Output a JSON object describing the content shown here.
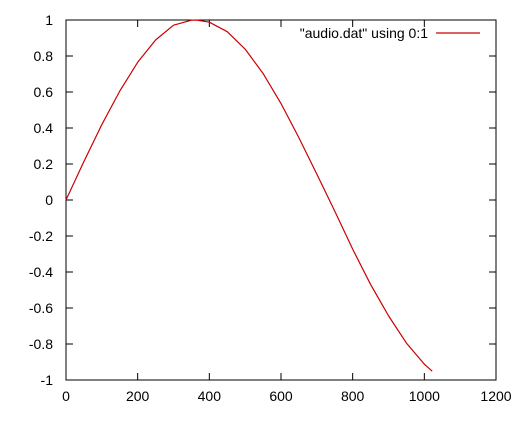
{
  "chart_data": {
    "type": "line",
    "title": "",
    "xlabel": "",
    "ylabel": "",
    "xlim": [
      0,
      1200
    ],
    "ylim": [
      -1,
      1
    ],
    "x_ticks": [
      0,
      200,
      400,
      600,
      800,
      1000,
      1200
    ],
    "y_ticks": [
      -1,
      -0.8,
      -0.6,
      -0.4,
      -0.2,
      0,
      0.2,
      0.4,
      0.6,
      0.8,
      1
    ],
    "x_tick_labels": [
      "0",
      "200",
      "400",
      "600",
      "800",
      "1000",
      "1200"
    ],
    "y_tick_labels": [
      "-1",
      "-0.8",
      "-0.6",
      "-0.4",
      "-0.2",
      "0",
      "0.2",
      "0.4",
      "0.6",
      "0.8",
      "1"
    ],
    "grid": false,
    "legend_position": "top-right",
    "series": [
      {
        "name": "\"audio.dat\" using 0:1",
        "color": "#cc0000",
        "x": [
          0,
          50,
          100,
          150,
          200,
          250,
          300,
          350,
          364,
          400,
          450,
          500,
          550,
          600,
          650,
          700,
          750,
          800,
          850,
          900,
          950,
          1000,
          1022
        ],
        "y": [
          0.0,
          0.214,
          0.419,
          0.605,
          0.765,
          0.889,
          0.971,
          0.999,
          1.0,
          0.988,
          0.935,
          0.838,
          0.703,
          0.536,
          0.346,
          0.144,
          -0.062,
          -0.273,
          -0.469,
          -0.643,
          -0.795,
          -0.912,
          -0.951
        ]
      }
    ]
  }
}
